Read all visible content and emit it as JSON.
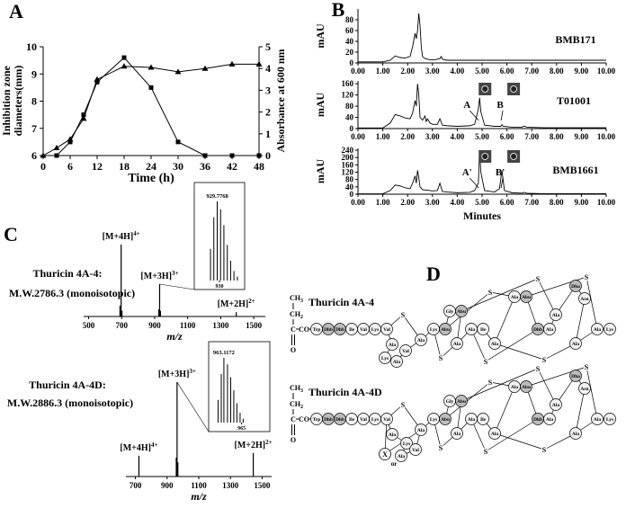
{
  "panel_labels": [
    "A",
    "B",
    "C",
    "D"
  ],
  "chart_data": [
    {
      "type": "line",
      "xlabel": "Time (h)",
      "ylabel": [
        "Inhibition zone",
        "diameters(mm)"
      ],
      "y2label": "Absorbance at 600 nm",
      "xlim": [
        0,
        48
      ],
      "xticks": [
        0,
        6,
        12,
        18,
        24,
        30,
        36,
        42,
        48
      ],
      "ylim": [
        6,
        10
      ],
      "yticks": [
        6,
        7,
        8,
        9,
        10
      ],
      "y2lim": [
        0,
        5
      ],
      "y2ticks": [
        0,
        1,
        2,
        3,
        4,
        5
      ],
      "series": [
        {
          "marker": "square",
          "color": "#000000",
          "x": [
            3,
            6,
            9,
            12,
            18,
            24,
            30,
            36,
            42,
            48
          ],
          "values": [
            6.0,
            6.5,
            7.5,
            8.7,
            9.6,
            8.5,
            6.5,
            6.0,
            6.0,
            6.0
          ]
        },
        {
          "marker": "triangle",
          "color": "#000000",
          "axis": "y2",
          "x": [
            0,
            3,
            6,
            9,
            12,
            18,
            24,
            30,
            36,
            42,
            48
          ],
          "values": [
            0,
            0.35,
            0.75,
            1.7,
            3.5,
            4.1,
            4.05,
            3.85,
            4.0,
            4.2,
            4.2
          ]
        }
      ]
    },
    {
      "type": "line",
      "title": "BMB171",
      "ylabel": "mAU",
      "color": "#000000",
      "xlim": [
        0,
        10
      ],
      "xticks": [
        {
          "value": 0,
          "label": "0.00"
        },
        {
          "value": 1,
          "label": "1.00"
        },
        {
          "value": 2,
          "label": "2.00"
        },
        {
          "value": 3,
          "label": "3.00"
        },
        {
          "value": 4,
          "label": "4.00"
        },
        {
          "value": 5,
          "label": "5.00"
        },
        {
          "value": 6,
          "label": "6.00"
        },
        {
          "value": 7,
          "label": "7.00"
        },
        {
          "value": 8,
          "label": "8.00"
        },
        {
          "value": 9,
          "label": "9.00"
        },
        {
          "value": 10,
          "label": "10.00"
        }
      ],
      "ylim": [
        0,
        100
      ],
      "yticks": [
        0,
        20,
        40,
        60,
        80
      ],
      "x": [
        0,
        0.5,
        1.0,
        1.3,
        1.5,
        1.7,
        1.9,
        2.1,
        2.2,
        2.3,
        2.35,
        2.4,
        2.45,
        2.5,
        2.55,
        2.6,
        2.7,
        2.9,
        3.1,
        3.3,
        3.35,
        3.4,
        3.6,
        4.0,
        5.0,
        6.0,
        7.0,
        8.0,
        9.0,
        10.0
      ],
      "values": [
        2,
        2,
        2,
        5,
        13,
        10,
        9,
        12,
        30,
        55,
        45,
        60,
        92,
        70,
        30,
        12,
        8,
        6,
        6,
        8,
        12,
        7,
        5,
        5,
        5,
        5,
        5,
        5,
        5,
        5
      ]
    },
    {
      "type": "line",
      "title": "T01001",
      "ylabel": "mAU",
      "color": "#000000",
      "xlim": [
        0,
        10
      ],
      "xticks": [
        {
          "value": 0,
          "label": "0.00"
        },
        {
          "value": 1,
          "label": "1.00"
        },
        {
          "value": 2,
          "label": "2.00"
        },
        {
          "value": 3,
          "label": "3.00"
        },
        {
          "value": 4,
          "label": "4.00"
        },
        {
          "value": 5,
          "label": "5.00"
        },
        {
          "value": 6,
          "label": "6.00"
        },
        {
          "value": 7,
          "label": "7.00"
        },
        {
          "value": 8,
          "label": "8.00"
        },
        {
          "value": 9,
          "label": "9.00"
        },
        {
          "value": 10,
          "label": "10.00"
        }
      ],
      "ylim": [
        0,
        170
      ],
      "yticks": [
        0,
        40,
        80,
        120,
        160
      ],
      "x": [
        0,
        1.0,
        1.3,
        1.5,
        1.7,
        1.9,
        2.1,
        2.2,
        2.3,
        2.35,
        2.4,
        2.45,
        2.5,
        2.6,
        2.7,
        2.75,
        2.8,
        2.9,
        3.0,
        3.2,
        3.3,
        3.4,
        3.6,
        4.0,
        4.5,
        4.7,
        4.85,
        4.9,
        4.95,
        5.1,
        5.5,
        5.75,
        5.8,
        5.85,
        6.2,
        6.6,
        6.7,
        6.8,
        7.5,
        10.0
      ],
      "values": [
        2,
        2,
        20,
        50,
        45,
        38,
        35,
        55,
        100,
        80,
        160,
        120,
        40,
        30,
        45,
        25,
        35,
        20,
        15,
        15,
        35,
        12,
        10,
        8,
        10,
        15,
        70,
        110,
        60,
        12,
        8,
        8,
        14,
        8,
        5,
        5,
        9,
        5,
        3,
        3
      ],
      "annotations": [
        {
          "text": "A",
          "x": 4.9
        },
        {
          "text": "B",
          "x": 5.8
        }
      ]
    },
    {
      "type": "line",
      "title": "BMB1661",
      "ylabel": "mAU",
      "xlabel": "Minutes",
      "color": "#000000",
      "xlim": [
        0,
        10
      ],
      "xticks": [
        {
          "value": 0,
          "label": "0.00"
        },
        {
          "value": 1,
          "label": "1.00"
        },
        {
          "value": 2,
          "label": "2.00"
        },
        {
          "value": 3,
          "label": "3.00"
        },
        {
          "value": 4,
          "label": "4.00"
        },
        {
          "value": 5,
          "label": "5.00"
        },
        {
          "value": 6,
          "label": "6.00"
        },
        {
          "value": 7,
          "label": "7.00"
        },
        {
          "value": 8,
          "label": "8.00"
        },
        {
          "value": 9,
          "label": "9.00"
        },
        {
          "value": 10,
          "label": "10.00"
        }
      ],
      "ylim": [
        0,
        250
      ],
      "yticks": [
        0,
        40,
        80,
        120,
        160,
        200,
        240
      ],
      "x": [
        0,
        1.0,
        1.3,
        1.5,
        1.7,
        1.9,
        2.1,
        2.2,
        2.3,
        2.35,
        2.4,
        2.45,
        2.5,
        2.6,
        2.8,
        3.0,
        3.2,
        3.3,
        3.4,
        3.6,
        4.0,
        4.5,
        4.7,
        4.85,
        4.9,
        4.95,
        5.1,
        5.5,
        5.7,
        5.8,
        5.9,
        6.2,
        6.6,
        6.7,
        6.8,
        7.5,
        10.0
      ],
      "values": [
        2,
        2,
        20,
        50,
        45,
        35,
        30,
        60,
        100,
        60,
        130,
        90,
        40,
        25,
        22,
        18,
        20,
        60,
        15,
        12,
        8,
        10,
        20,
        60,
        240,
        120,
        20,
        12,
        30,
        130,
        20,
        8,
        6,
        10,
        5,
        3,
        3
      ],
      "annotations": [
        {
          "text": "A'",
          "x": 4.9
        },
        {
          "text": "B'",
          "x": 5.8
        }
      ]
    },
    {
      "type": "stem",
      "compound": [
        "Thuricin 4A-4:",
        "M.W.2786.3 (monoisotopic)"
      ],
      "xlabel": "m/z",
      "color": "#000000",
      "xlim": [
        470,
        1570
      ],
      "xticks": [
        500,
        700,
        900,
        1100,
        1300,
        1500
      ],
      "ylim": [
        0,
        100
      ],
      "x": [
        690,
        697,
        702,
        925,
        930,
        935,
        1394
      ],
      "values": [
        15,
        100,
        8,
        10,
        45,
        8,
        6
      ],
      "annotations": [
        {
          "label": "[M+4H]",
          "charge": "4+",
          "x": 697
        },
        {
          "label": "[M+3H]",
          "charge": "3+",
          "x": 930
        },
        {
          "label": "[M+2H]",
          "charge": "2+",
          "x": 1394
        }
      ],
      "inset": {
        "xlim": [
          927.5,
          932.5
        ],
        "xticks": [
          930
        ],
        "ylim": [
          0,
          100
        ],
        "peak_label": "929.7768",
        "x": [
          929.11,
          929.44,
          929.7768,
          930.11,
          930.44,
          930.78,
          931.11,
          931.44,
          931.78
        ],
        "values": [
          40,
          80,
          100,
          90,
          70,
          45,
          25,
          12,
          5
        ]
      }
    },
    {
      "type": "stem",
      "compound": [
        "Thuricin 4A-4D:",
        "M.W.2886.3 (monoisotopic)"
      ],
      "xlabel": "m/z",
      "color": "#000000",
      "xlim": [
        640,
        1560
      ],
      "xticks": [
        700,
        900,
        1100,
        1300,
        1500
      ],
      "ylim": [
        0,
        100
      ],
      "x": [
        722,
        958,
        963,
        968,
        1444
      ],
      "values": [
        22,
        20,
        100,
        15,
        25
      ],
      "annotations": [
        {
          "label": "[M+4H]",
          "charge": "4+",
          "x": 722
        },
        {
          "label": "[M+3H]",
          "charge": "3+",
          "x": 963
        },
        {
          "label": "[M+2H]",
          "charge": "2+",
          "x": 1444
        }
      ],
      "inset": {
        "xlim": [
          961.5,
          968
        ],
        "xticks": [
          965
        ],
        "ylim": [
          0,
          100
        ],
        "peak_label": "963.1172",
        "x": [
          962.5,
          962.84,
          963.1172,
          963.5,
          963.84,
          964.17,
          964.5,
          964.84,
          965.17
        ],
        "values": [
          35,
          75,
          100,
          90,
          70,
          50,
          30,
          15,
          6
        ]
      }
    }
  ],
  "diagram": {
    "peptides": [
      {
        "name": "Thuricin 4A-4",
        "n_terminus": {
          "methyl": [
            "CH",
            "3"
          ],
          "methylene": [
            "CH",
            "2"
          ],
          "carbon": "C",
          "oxygen": "O",
          "carbonyl": "CO"
        },
        "residues": [
          "Trp",
          "Dhb",
          "Dhb",
          "Ile",
          "Val",
          "Lys",
          "Val",
          "Ala",
          "Lys",
          "Ala",
          "Val",
          "Ala",
          "Lys",
          "Abu",
          "Gly",
          "Abu",
          "Ala",
          "Ala",
          "Ile",
          "Ala",
          "Ala",
          "Abu",
          "Dhb",
          "Ala",
          "Ala",
          "Dha",
          "Asn",
          "Ala",
          "Ala",
          "Lys"
        ],
        "bridges": [
          "S",
          "S",
          "S",
          "S",
          "S",
          "S",
          "S"
        ]
      },
      {
        "name": "Thuricin 4A-4D",
        "n_terminus": {
          "methyl": [
            "CH",
            "3"
          ],
          "methylene": [
            "CH",
            "2"
          ],
          "carbon": "C",
          "oxygen": "O",
          "carbonyl": "CO"
        },
        "residues": [
          "Trp",
          "Dhb",
          "Dhb",
          "Ile",
          "Val",
          "Lys",
          "Val",
          "Ala",
          "Lys",
          "Ala",
          "Val",
          "Ala",
          "Lys",
          "Abu",
          "Gly",
          "Abu",
          "Ala",
          "Ala",
          "Ile",
          "Ala",
          "Ala",
          "Abu",
          "Dhb",
          "Ala",
          "Ala",
          "Dha",
          "Asn",
          "Ala",
          "Ala",
          "Lys"
        ],
        "bridges": [
          "S",
          "S",
          "S",
          "S",
          "S",
          "S",
          "S"
        ],
        "alternative": {
          "residue": "X",
          "connector": "or"
        }
      }
    ]
  }
}
